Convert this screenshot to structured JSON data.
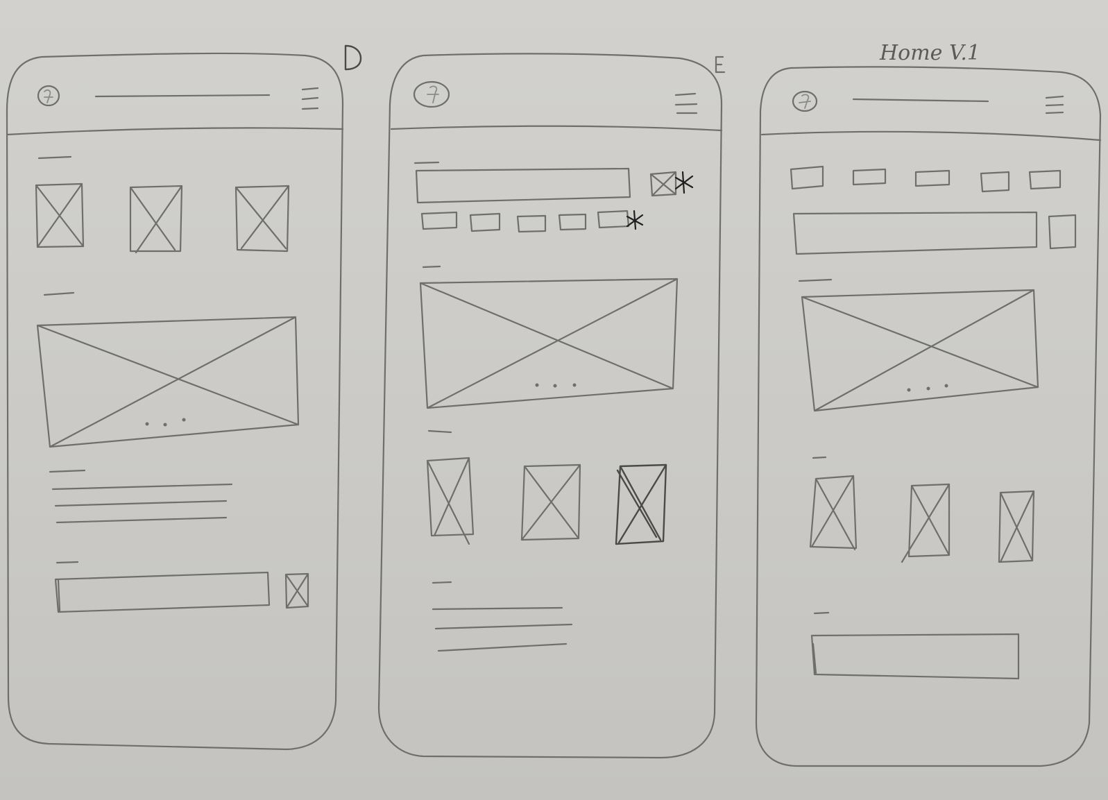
{
  "annotations": {
    "sketch_d": "D",
    "sketch_e": "E",
    "sketch_home": "Home V.1"
  },
  "colors": {
    "paper": "#cbcac6",
    "pencil": "#6e6e6c",
    "ink": "#1f1f1f"
  },
  "icons": [
    "logo-icon",
    "hamburger-menu-icon",
    "image-placeholder-icon",
    "carousel-dots-icon",
    "asterisk-mark-icon"
  ]
}
